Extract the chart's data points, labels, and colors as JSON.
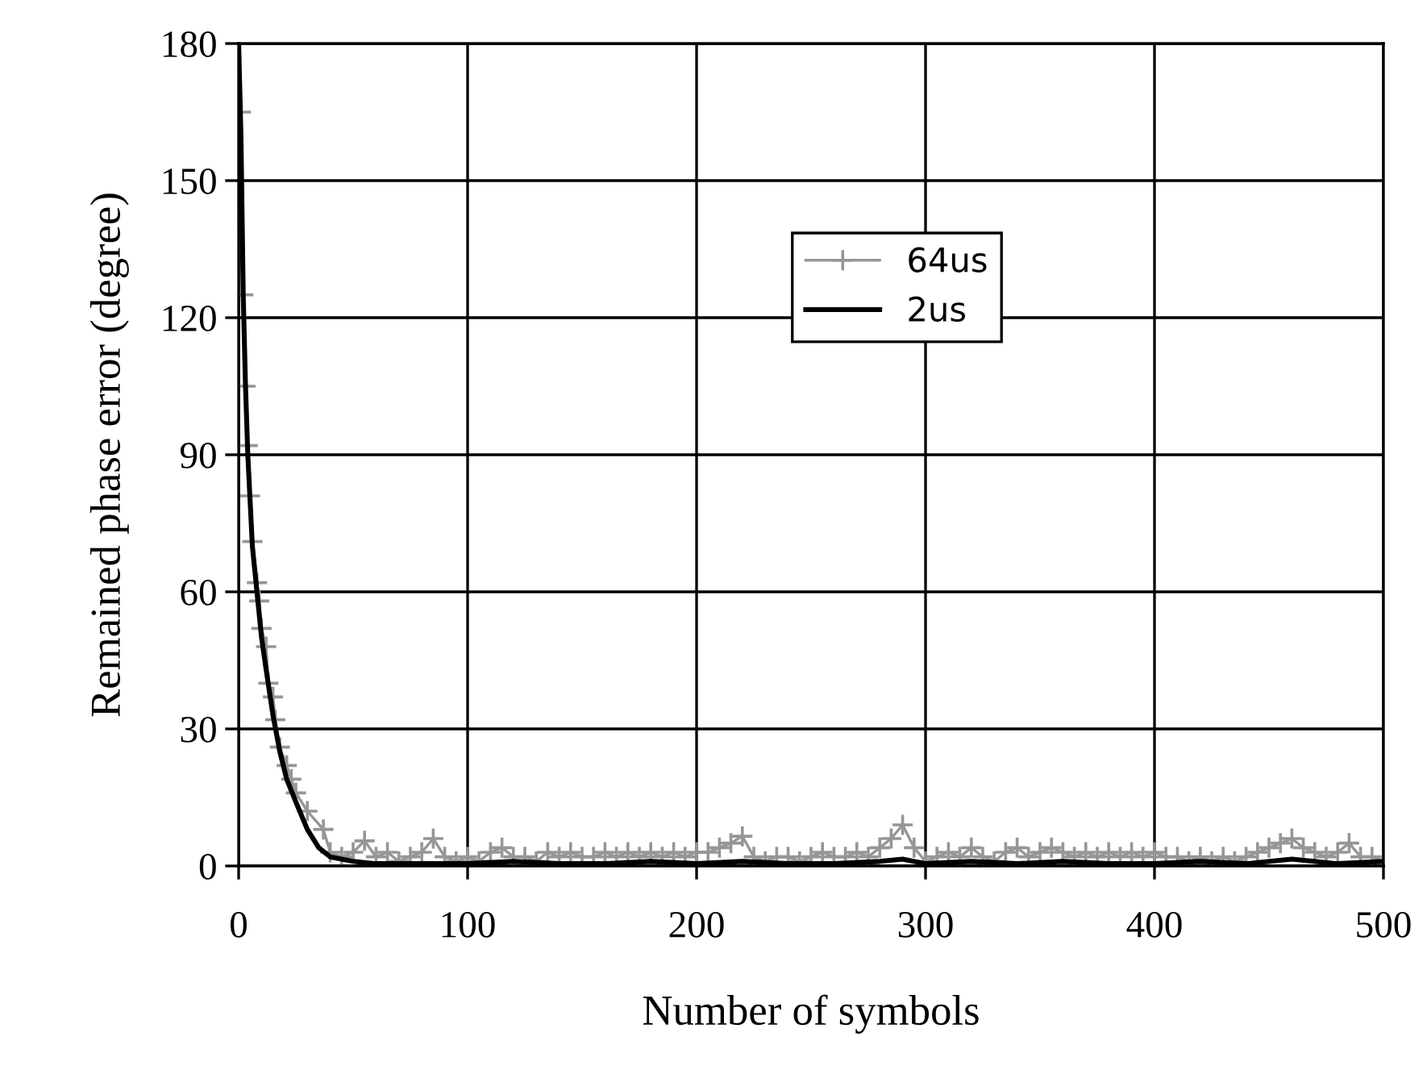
{
  "chart_data": {
    "type": "line",
    "xlabel": "Number of symbols",
    "ylabel": "Remained phase error (degree)",
    "xlim": [
      0,
      500
    ],
    "xticks": [
      0,
      100,
      200,
      300,
      400,
      500
    ],
    "ylim": [
      0,
      180
    ],
    "yticks": [
      0,
      30,
      60,
      90,
      120,
      150,
      180
    ],
    "grid": true,
    "legend": "top",
    "series": [
      {
        "name": "64us",
        "color": "#969696",
        "marker": "cross",
        "x": [
          0,
          1,
          2,
          3,
          4,
          5,
          6,
          8,
          9,
          10,
          12,
          13,
          15,
          16,
          18,
          21,
          23,
          25,
          30,
          37,
          40,
          45,
          50,
          55,
          60,
          65,
          70,
          75,
          80,
          85,
          90,
          95,
          100,
          105,
          110,
          115,
          120,
          125,
          130,
          135,
          140,
          145,
          150,
          155,
          160,
          165,
          170,
          175,
          180,
          185,
          190,
          195,
          200,
          205,
          210,
          215,
          220,
          225,
          230,
          235,
          240,
          245,
          250,
          255,
          260,
          265,
          270,
          275,
          280,
          285,
          290,
          295,
          300,
          305,
          310,
          315,
          320,
          325,
          330,
          335,
          340,
          345,
          350,
          355,
          360,
          365,
          370,
          375,
          380,
          385,
          390,
          395,
          400,
          405,
          410,
          415,
          420,
          425,
          430,
          435,
          440,
          445,
          450,
          455,
          460,
          465,
          470,
          475,
          480,
          485,
          490,
          495,
          500
        ],
        "values": [
          180,
          165,
          125,
          105,
          92,
          81,
          71,
          62,
          58,
          52,
          48,
          40,
          37,
          32,
          26,
          22,
          19,
          16,
          12,
          8,
          3,
          2,
          3,
          5.5,
          2,
          3,
          1,
          2,
          3,
          6,
          2,
          1,
          2,
          1,
          3,
          4,
          2,
          2,
          1,
          3,
          2,
          3,
          2,
          2,
          3,
          2,
          3,
          2,
          3,
          2,
          3,
          2,
          3,
          3,
          4,
          5,
          6.5,
          2,
          1,
          2,
          2,
          1,
          2,
          3,
          2,
          2,
          3,
          2,
          4,
          6,
          9,
          4,
          1,
          2,
          3,
          2,
          4,
          2,
          1,
          3,
          4,
          2,
          3,
          4,
          3,
          2,
          3,
          2,
          3,
          2,
          3,
          2,
          3,
          2,
          2,
          1,
          2,
          1,
          2,
          1,
          2,
          3,
          4,
          5,
          6,
          4,
          3,
          2,
          3,
          5,
          2,
          2,
          1
        ]
      },
      {
        "name": "2us",
        "color": "#000000",
        "marker": "none",
        "x": [
          0,
          1,
          2,
          3,
          4,
          5,
          6,
          8,
          10,
          12,
          15,
          18,
          21,
          25,
          30,
          35,
          40,
          50,
          60,
          80,
          100,
          120,
          140,
          160,
          180,
          200,
          220,
          240,
          260,
          280,
          290,
          300,
          320,
          340,
          360,
          380,
          400,
          420,
          440,
          460,
          480,
          500
        ],
        "values": [
          180,
          160,
          125,
          105,
          90,
          80,
          70,
          60,
          50,
          43,
          33,
          25,
          19,
          14,
          8,
          4,
          2,
          1,
          0.5,
          0.5,
          0.5,
          1,
          0.5,
          0.5,
          1,
          0.5,
          1,
          0.5,
          0.5,
          1,
          1.5,
          0.5,
          1,
          0.5,
          1,
          0.5,
          0.5,
          1,
          0.5,
          1.5,
          0.5,
          1
        ]
      }
    ]
  }
}
